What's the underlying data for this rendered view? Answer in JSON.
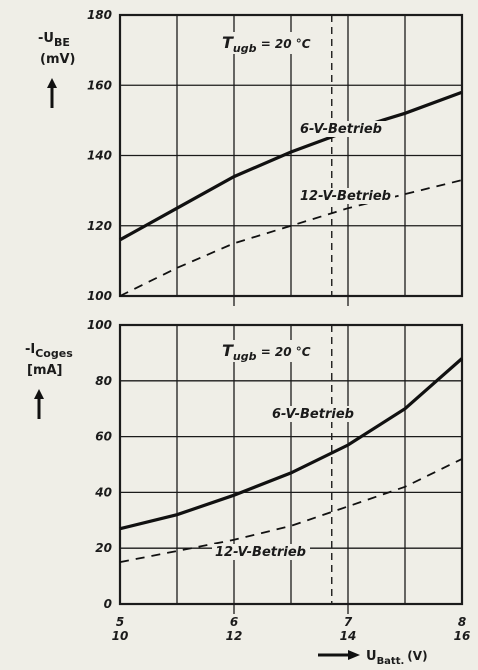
{
  "chart_data": [
    {
      "type": "line",
      "ylabel_main": "-U",
      "ylabel_sub": "BE",
      "yunit": "(mV)",
      "ylim": [
        100,
        180
      ],
      "yticks": [
        "100",
        "120",
        "140",
        "160",
        "180"
      ],
      "xlim": [
        5,
        8
      ],
      "annotation_main": "T",
      "annotation_sub": "ugb",
      "annotation_rest": " = 20 °C",
      "series": [
        {
          "name": "6-V-Betrieb",
          "style": "solid",
          "x": [
            5,
            5.5,
            6,
            6.5,
            7,
            7.5,
            8
          ],
          "y": [
            116,
            125,
            134,
            141,
            147,
            152,
            158
          ]
        },
        {
          "name": "12-V-Betrieb",
          "style": "dashed",
          "x": [
            5,
            5.5,
            6,
            6.5,
            7,
            7.5,
            8
          ],
          "y": [
            100,
            108,
            115,
            120,
            125,
            129,
            133
          ]
        }
      ]
    },
    {
      "type": "line",
      "ylabel_main": "-I",
      "ylabel_sub": "Coges",
      "yunit": "[mA]",
      "ylim": [
        0,
        100
      ],
      "yticks": [
        "0",
        "20",
        "40",
        "60",
        "80",
        "100"
      ],
      "xlim": [
        5,
        8
      ],
      "xticks_top": [
        "5",
        "6",
        "7",
        "8"
      ],
      "xticks_bottom": [
        "10",
        "12",
        "14",
        "16"
      ],
      "xlabel_main": "U",
      "xlabel_sub": "Batt.",
      "xlabel_unit": "(V)",
      "annotation_main": "T",
      "annotation_sub": "ugb",
      "annotation_rest": " = 20 °C",
      "series": [
        {
          "name": "6-V-Betrieb",
          "style": "solid",
          "x": [
            5,
            5.5,
            6,
            6.5,
            7,
            7.5,
            8
          ],
          "y": [
            27,
            32,
            39,
            47,
            57,
            70,
            88
          ]
        },
        {
          "name": "12-V-Betrieb",
          "style": "dashed",
          "x": [
            5,
            5.5,
            6,
            6.5,
            7,
            7.5,
            8
          ],
          "y": [
            15,
            19,
            23,
            28,
            35,
            42,
            52
          ]
        }
      ]
    }
  ]
}
